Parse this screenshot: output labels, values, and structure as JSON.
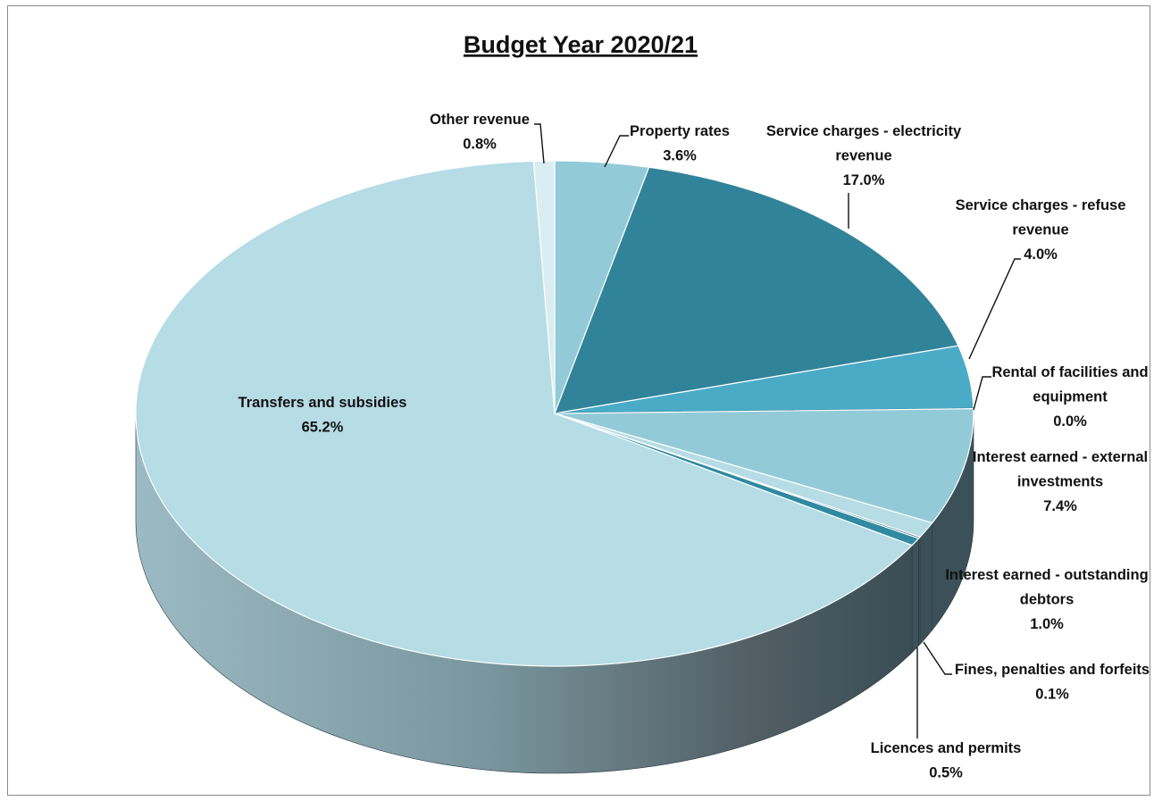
{
  "chart_data": {
    "type": "pie",
    "title": "Budget Year 2020/21",
    "three_d": true,
    "slices": [
      {
        "label": "Property rates",
        "value": 3.6,
        "value_label": "3.6%",
        "color": "#93cad8"
      },
      {
        "label": "Service charges - electricity revenue",
        "value": 17.0,
        "value_label": "17.0%",
        "color": "#31839a"
      },
      {
        "label": "Service charges - refuse revenue",
        "value": 4.0,
        "value_label": "4.0%",
        "color": "#4aabc6"
      },
      {
        "label": "Rental of facilities and equipment",
        "value": 0.0,
        "value_label": "0.0%",
        "color": "#2d7a8f"
      },
      {
        "label": "Interest earned - external investments",
        "value": 7.4,
        "value_label": "7.4%",
        "color": "#93cad8"
      },
      {
        "label": "Interest earned - outstanding debtors",
        "value": 1.0,
        "value_label": "1.0%",
        "color": "#b6dce6"
      },
      {
        "label": "Fines, penalties and forfeits",
        "value": 0.1,
        "value_label": "0.1%",
        "color": "#1f5f70"
      },
      {
        "label": "Licences and permits",
        "value": 0.5,
        "value_label": "0.5%",
        "color": "#2f8aa2"
      },
      {
        "label": "Transfers and subsidies",
        "value": 65.2,
        "value_label": "65.2%",
        "color": "#b6dce6"
      },
      {
        "label": "Other revenue",
        "value": 0.8,
        "value_label": "0.8%",
        "color": "#daedf2"
      }
    ],
    "labels": [
      {
        "lines": [
          "Property rates",
          "3.6%"
        ]
      },
      {
        "lines": [
          "Service charges - electricity",
          "revenue",
          "17.0%"
        ]
      },
      {
        "lines": [
          "Service charges - refuse",
          "revenue",
          "4.0%"
        ]
      },
      {
        "lines": [
          "Rental of facilities and",
          "equipment",
          "0.0%"
        ]
      },
      {
        "lines": [
          "Interest earned - external",
          "investments",
          "7.4%"
        ]
      },
      {
        "lines": [
          "Interest earned - outstanding",
          "debtors",
          "1.0%"
        ]
      },
      {
        "lines": [
          "Fines, penalties and forfeits",
          "0.1%"
        ]
      },
      {
        "lines": [
          "Licences and permits",
          "0.5%"
        ]
      },
      {
        "lines": [
          "Transfers and subsidies",
          "65.2%"
        ]
      },
      {
        "lines": [
          "Other revenue",
          "0.8%"
        ]
      }
    ]
  }
}
